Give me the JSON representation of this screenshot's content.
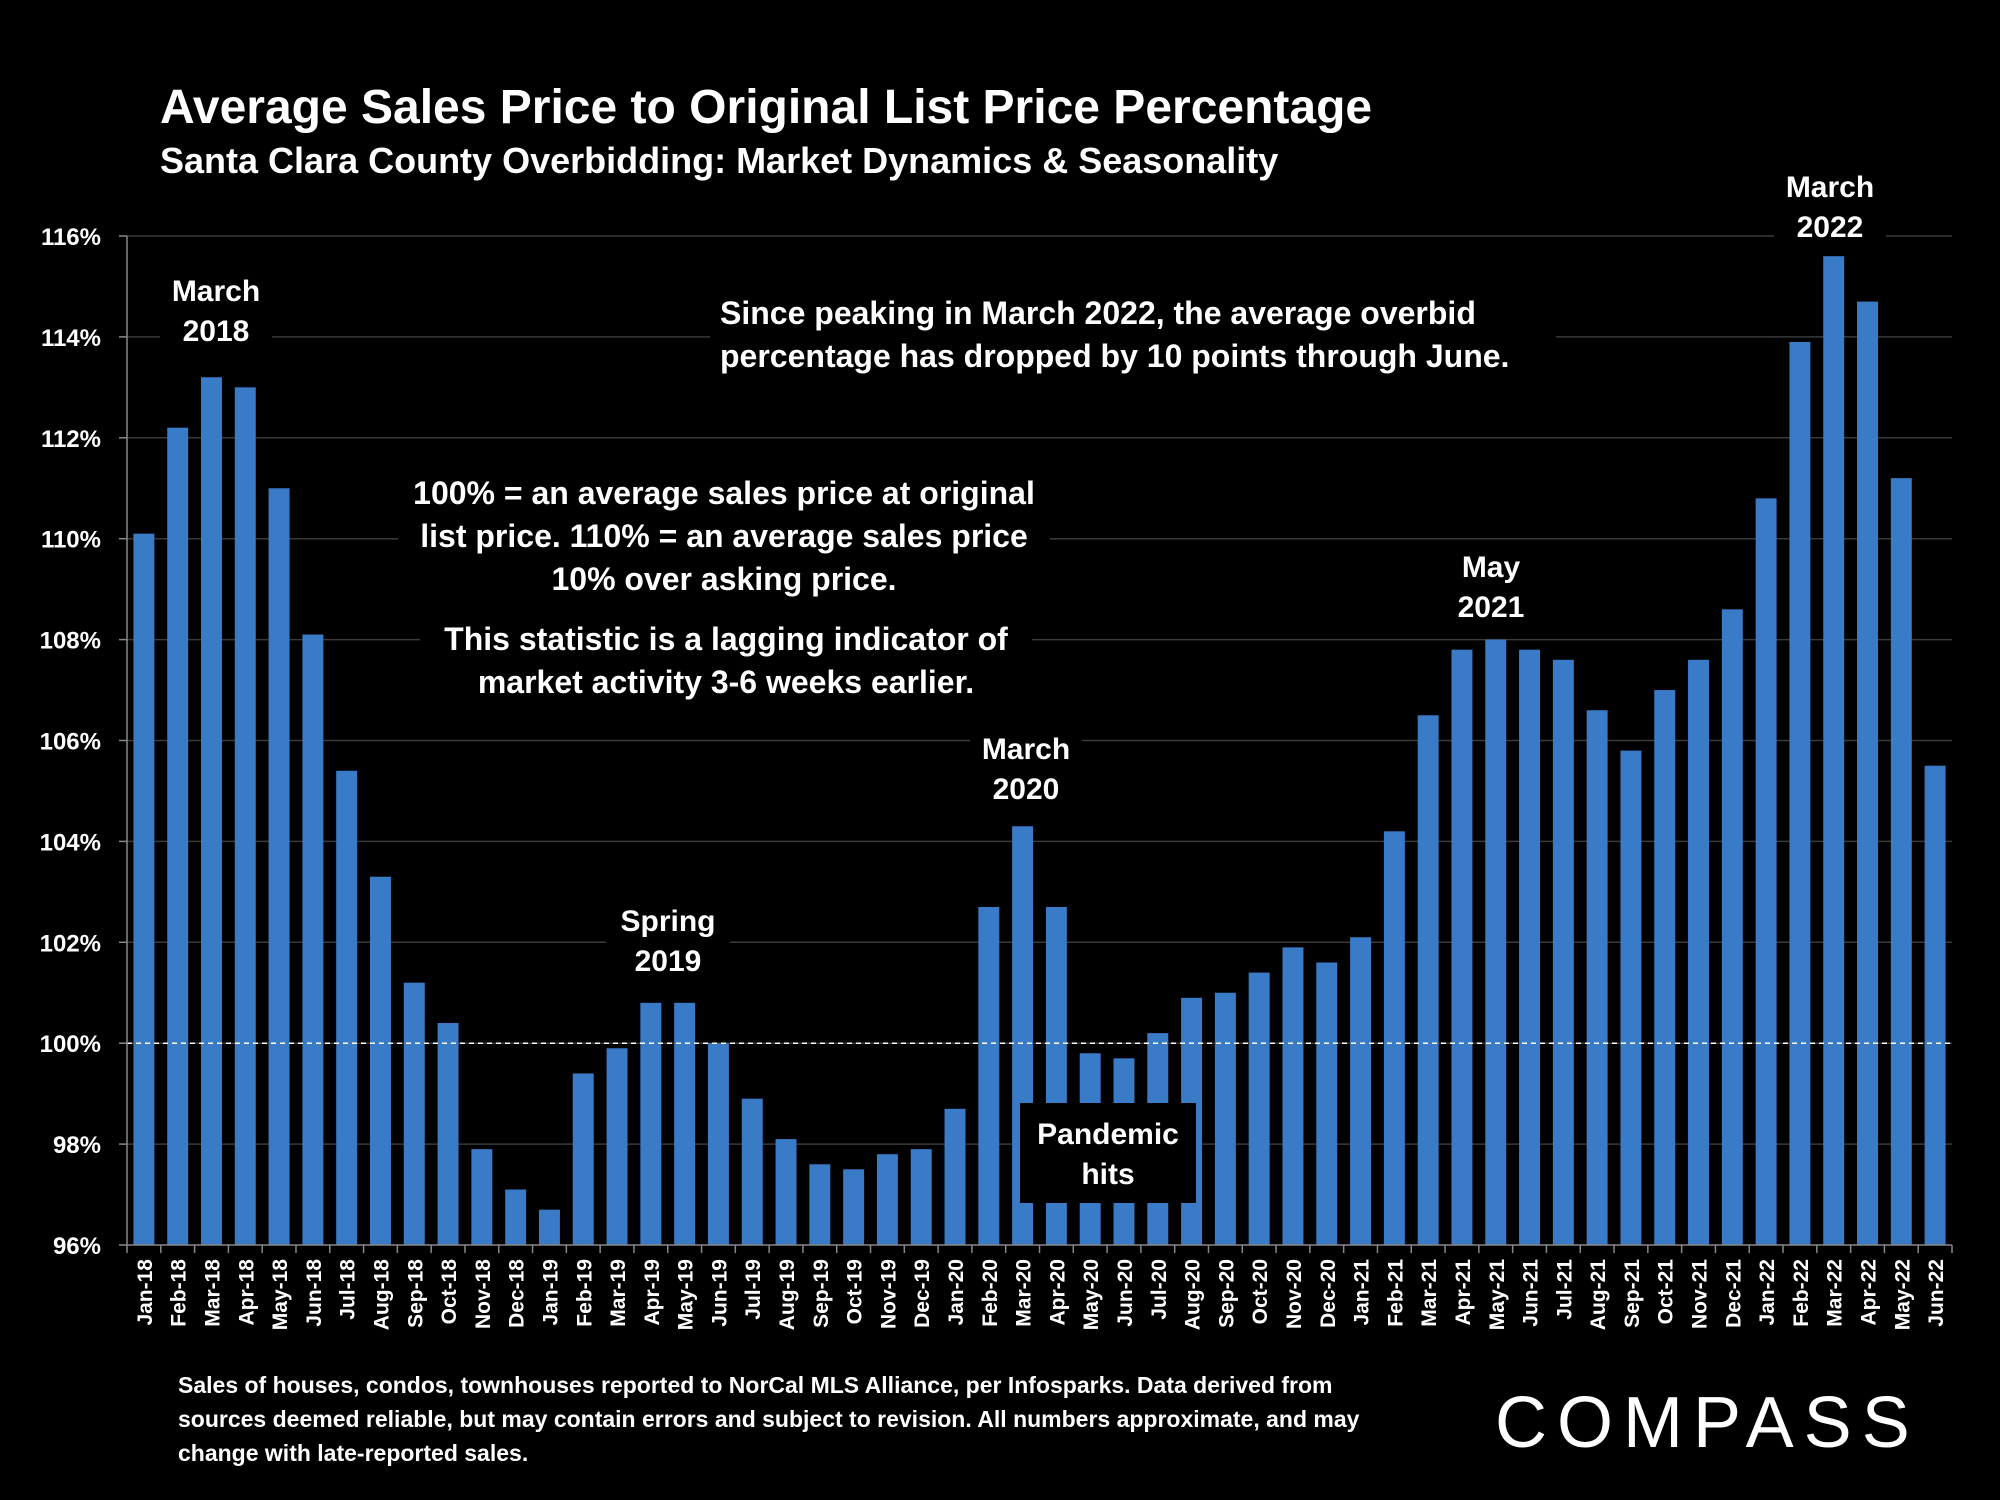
{
  "title": "Average Sales Price to Original List Price Percentage",
  "subtitle": "Santa Clara County Overbidding: Market Dynamics & Seasonality",
  "annotations": {
    "march_2018": [
      "March",
      "2018"
    ],
    "spring_2019": [
      "Spring",
      "2019"
    ],
    "march_2020": [
      "March",
      "2020"
    ],
    "may_2021": [
      "May",
      "2021"
    ],
    "march_2022": [
      "March",
      "2022"
    ],
    "pandemic": [
      "Pandemic",
      "hits"
    ],
    "peak_note": [
      "Since peaking in March 2022, the average overbid",
      "percentage has dropped by 10 points through June."
    ],
    "definition_note": [
      "100% = an average sales price at original",
      "list price. 110% = an average sales price",
      "10% over asking price."
    ],
    "lagging_note": [
      "This statistic is a lagging indicator of",
      "market activity 3-6 weeks earlier."
    ]
  },
  "footnote": "Sales of houses, condos, townhouses reported to NorCal MLS Alliance, per Infosparks. Data derived from sources deemed reliable, but may contain errors and subject to revision. All numbers approximate, and may change with late-reported sales.",
  "logo": "COMPASS",
  "chart_data": {
    "type": "bar",
    "ylim": [
      96,
      116
    ],
    "ytick_values": [
      96,
      98,
      100,
      102,
      104,
      106,
      108,
      110,
      112,
      114,
      116
    ],
    "ytick_labels": [
      "96%",
      "98%",
      "100%",
      "102%",
      "104%",
      "106%",
      "108%",
      "110%",
      "112%",
      "114%",
      "116%"
    ],
    "reference_line": 100,
    "grid": true,
    "bar_color": "#3A7BC8",
    "categories": [
      "Jan-18",
      "Feb-18",
      "Mar-18",
      "Apr-18",
      "May-18",
      "Jun-18",
      "Jul-18",
      "Aug-18",
      "Sep-18",
      "Oct-18",
      "Nov-18",
      "Dec-18",
      "Jan-19",
      "Feb-19",
      "Mar-19",
      "Apr-19",
      "May-19",
      "Jun-19",
      "Jul-19",
      "Aug-19",
      "Sep-19",
      "Oct-19",
      "Nov-19",
      "Dec-19",
      "Jan-20",
      "Feb-20",
      "Mar-20",
      "Apr-20",
      "May-20",
      "Jun-20",
      "Jul-20",
      "Aug-20",
      "Sep-20",
      "Oct-20",
      "Nov-20",
      "Dec-20",
      "Jan-21",
      "Feb-21",
      "Mar-21",
      "Apr-21",
      "May-21",
      "Jun-21",
      "Jul-21",
      "Aug-21",
      "Sep-21",
      "Oct-21",
      "Nov-21",
      "Dec-21",
      "Jan-22",
      "Feb-22",
      "Mar-22",
      "Apr-22",
      "May-22",
      "Jun-22"
    ],
    "values": [
      110.1,
      112.2,
      113.2,
      113.0,
      111.0,
      108.1,
      105.4,
      103.3,
      101.2,
      100.4,
      97.9,
      97.1,
      96.7,
      99.4,
      99.9,
      100.8,
      100.8,
      100.0,
      98.9,
      98.1,
      97.6,
      97.5,
      97.8,
      97.9,
      98.7,
      102.7,
      104.3,
      102.7,
      99.8,
      99.7,
      100.2,
      100.9,
      101.0,
      101.4,
      101.9,
      101.6,
      102.1,
      104.2,
      106.5,
      107.8,
      108.0,
      107.8,
      107.6,
      106.6,
      105.8,
      107.0,
      107.6,
      108.6,
      110.8,
      113.9,
      115.6,
      114.7,
      111.2,
      105.5
    ]
  }
}
